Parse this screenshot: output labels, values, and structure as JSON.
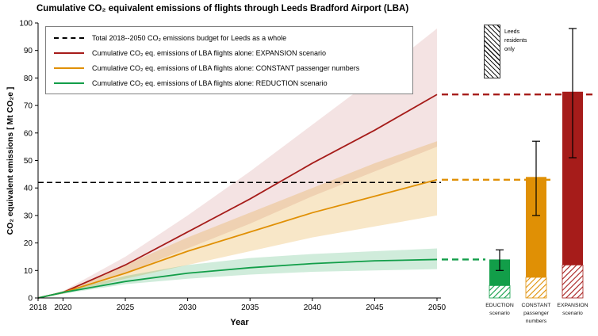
{
  "title": "Cumulative CO₂ equivalent emissions of flights through Leeds Bradford Airport (LBA)",
  "axes": {
    "xlabel": "Year",
    "ylabel": "CO₂ equivalent emissions [ Mt CO₂e ]"
  },
  "legend": {
    "items": [
      {
        "label": "Total 2018--2050 CO₂ emissions budget for Leeds as a whole",
        "color": "#000000",
        "style": "dashed"
      },
      {
        "label": "Cumulative CO₂ eq. emissions of LBA flights alone: EXPANSION scenario",
        "color": "#a61c1a",
        "style": "solid"
      },
      {
        "label": "Cumulative CO₂ eq. emissions of LBA flights alone: CONSTANT passenger numbers",
        "color": "#e09005",
        "style": "solid"
      },
      {
        "label": "Cumulative CO₂ eq. emissions of LBA flights alone: REDUCTION scenario",
        "color": "#129e49",
        "style": "solid"
      }
    ]
  },
  "residents_legend": {
    "lines": [
      "Leeds",
      "residents",
      "only"
    ]
  },
  "chart_data": {
    "type": "line+bar",
    "title": "Cumulative CO₂ equivalent emissions of flights through Leeds Bradford Airport (LBA)",
    "xlabel": "Year",
    "ylabel": "CO₂ equivalent emissions [ Mt CO₂e ]",
    "grid": false,
    "legend_position": "top-left",
    "xlim": [
      2018,
      2050
    ],
    "ylim": [
      0,
      100
    ],
    "x": [
      2018,
      2020,
      2025,
      2030,
      2035,
      2040,
      2045,
      2050
    ],
    "x_ticks": [
      2018,
      2020,
      2025,
      2030,
      2035,
      2040,
      2045,
      2050
    ],
    "y_ticks": [
      0,
      10,
      20,
      30,
      40,
      50,
      60,
      70,
      80,
      90,
      100
    ],
    "budget_line": {
      "value": 42,
      "label": "Total 2018--2050 CO₂ emissions budget for Leeds as a whole"
    },
    "series": [
      {
        "name": "EXPANSION scenario",
        "color": "#a61c1a",
        "values": [
          0,
          2,
          12,
          24,
          36,
          49,
          61,
          74
        ],
        "upper": [
          0,
          2.5,
          15,
          30,
          46,
          63,
          80,
          98
        ],
        "lower": [
          0,
          1.5,
          9,
          18,
          27,
          37,
          46,
          55
        ]
      },
      {
        "name": "CONSTANT passenger numbers",
        "color": "#e09005",
        "values": [
          0,
          2,
          9,
          17,
          24,
          31,
          37,
          43
        ],
        "upper": [
          0,
          2.5,
          12,
          22,
          31,
          40,
          49,
          57
        ],
        "lower": [
          0,
          1.5,
          7,
          12,
          17,
          22,
          26,
          30
        ]
      },
      {
        "name": "REDUCTION scenario",
        "color": "#129e49",
        "values": [
          0,
          2,
          6,
          9,
          11,
          12.5,
          13.5,
          14
        ],
        "upper": [
          0,
          2.5,
          8,
          12,
          14.5,
          16,
          17,
          18
        ],
        "lower": [
          0,
          1.5,
          5,
          7,
          8.5,
          9.5,
          10,
          10.5
        ]
      }
    ],
    "bars": [
      {
        "name": "REDUCTION scenario",
        "label_lines": [
          "EDUCTION",
          "scenario"
        ],
        "color": "#129e49",
        "total": 14,
        "leeds_residents_only": 4.5,
        "err_low": 10,
        "err_high": 17.5,
        "dashed_level": 14
      },
      {
        "name": "CONSTANT passenger numbers",
        "label_lines": [
          "CONSTANT",
          "passenger",
          "numbers"
        ],
        "color": "#e09005",
        "total": 44,
        "leeds_residents_only": 7.5,
        "err_low": 30,
        "err_high": 57,
        "dashed_level": 43
      },
      {
        "name": "EXPANSION scenario",
        "label_lines": [
          "EXPANSION",
          "scenario"
        ],
        "color": "#a61c1a",
        "total": 75,
        "leeds_residents_only": 12,
        "err_low": 51,
        "err_high": 98,
        "dashed_level": 74
      }
    ]
  }
}
